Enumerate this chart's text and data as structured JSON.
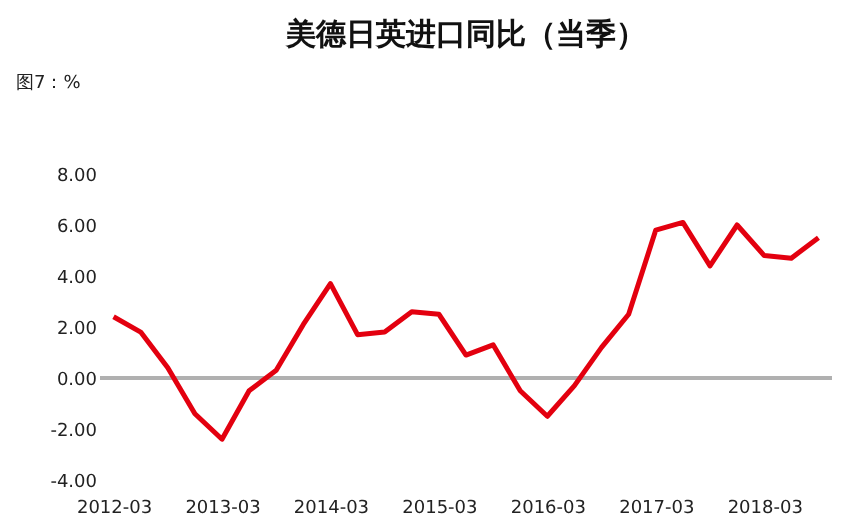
{
  "chart_data": {
    "type": "line",
    "title": "美德日英进口同比（当季）",
    "annotations": [
      "图7：%"
    ],
    "categories": [
      "2012-03",
      null,
      null,
      null,
      "2013-03",
      null,
      null,
      null,
      "2014-03",
      null,
      null,
      null,
      "2015-03",
      null,
      null,
      null,
      "2016-03",
      null,
      null,
      null,
      "2017-03",
      null,
      null,
      null,
      "2018-03",
      null,
      null
    ],
    "series": [
      {
        "color": "#e3000f",
        "values": [
          2.4,
          1.8,
          0.4,
          -1.4,
          -2.4,
          -0.5,
          0.3,
          2.1,
          3.7,
          1.7,
          1.8,
          2.6,
          2.5,
          0.9,
          1.3,
          -0.5,
          -1.5,
          -0.3,
          1.2,
          2.5,
          5.8,
          6.1,
          4.4,
          6.0,
          4.8,
          4.7,
          5.5
        ]
      }
    ],
    "ylim": [
      -4,
      8
    ],
    "yticks": [
      {
        "value": -4,
        "label": "-4.00"
      },
      {
        "value": -2,
        "label": "-2.00"
      },
      {
        "value": 0,
        "label": "0.00"
      },
      {
        "value": 2,
        "label": "2.00"
      },
      {
        "value": 4,
        "label": "4.00"
      },
      {
        "value": 6,
        "label": "6.00"
      },
      {
        "value": 8,
        "label": "8.00"
      }
    ],
    "ref_lines": [
      {
        "axis": "y",
        "value": 0,
        "color": "#b0b0b0"
      }
    ],
    "grid": false,
    "legend": false,
    "marker": "none",
    "line_style": "solid"
  }
}
